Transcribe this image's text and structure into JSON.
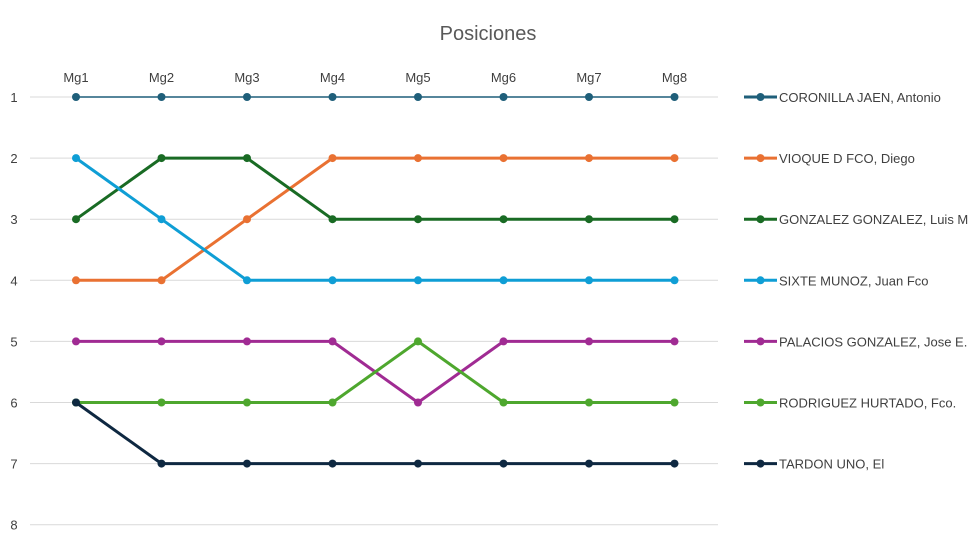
{
  "chart_data": {
    "type": "line",
    "title": "Posiciones",
    "x": [
      "Mg1",
      "Mg2",
      "Mg3",
      "Mg4",
      "Mg5",
      "Mg6",
      "Mg7",
      "Mg8"
    ],
    "y_ticks": [
      1,
      2,
      3,
      4,
      5,
      6,
      7,
      8
    ],
    "ylim": [
      1,
      8
    ],
    "y_reversed": true,
    "x_axis_position": "top",
    "grid": true,
    "legend_position": "right",
    "series": [
      {
        "name": "CORONILLA JAEN, Antonio",
        "color": "#1f5f7a",
        "values": [
          1,
          1,
          1,
          1,
          1,
          1,
          1,
          1
        ]
      },
      {
        "name": "VIOQUE D FCO, Diego",
        "color": "#e97132",
        "values": [
          4,
          4,
          3,
          2,
          2,
          2,
          2,
          2
        ]
      },
      {
        "name": "GONZALEZ GONZALEZ, Luis M",
        "color": "#196b24",
        "values": [
          3,
          2,
          2,
          3,
          3,
          3,
          3,
          3
        ]
      },
      {
        "name": "SIXTE MUNOZ, Juan Fco",
        "color": "#0f9ed5",
        "values": [
          2,
          3,
          4,
          4,
          4,
          4,
          4,
          4
        ]
      },
      {
        "name": "PALACIOS GONZALEZ, Jose E.",
        "color": "#a02b93",
        "values": [
          5,
          5,
          5,
          5,
          6,
          5,
          5,
          5
        ]
      },
      {
        "name": "RODRIGUEZ HURTADO, Fco.",
        "color": "#4ea72e",
        "values": [
          6,
          6,
          6,
          6,
          5,
          6,
          6,
          6
        ]
      },
      {
        "name": "TARDON UNO, El",
        "color": "#0e2841",
        "values": [
          6,
          7,
          7,
          7,
          7,
          7,
          7,
          7
        ]
      }
    ]
  }
}
